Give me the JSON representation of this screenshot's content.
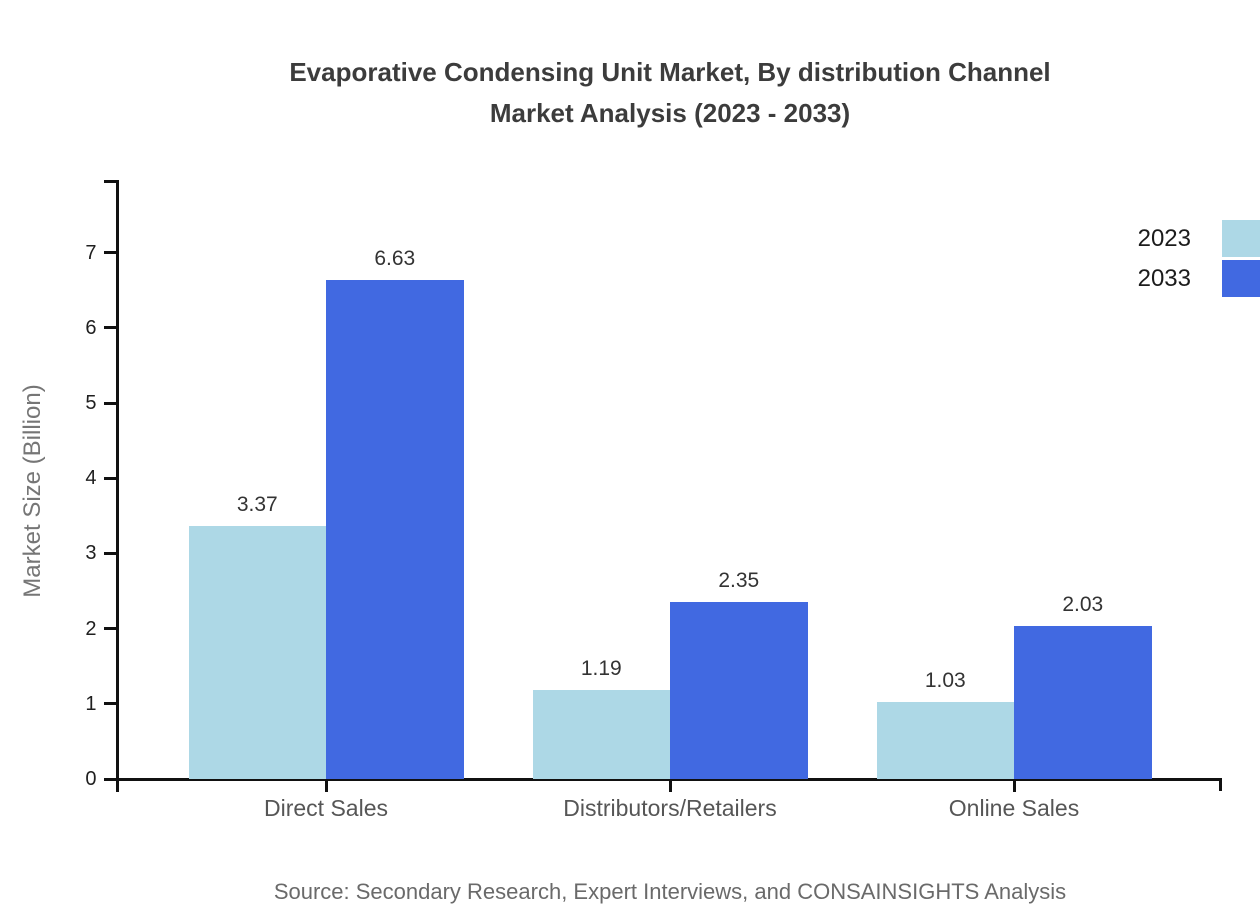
{
  "title": {
    "line1": "Evaporative Condensing Unit Market, By distribution Channel",
    "line2": "Market Analysis (2023 - 2033)"
  },
  "source": "Source: Secondary Research, Expert Interviews, and CONSAINSIGHTS Analysis",
  "chart_data": {
    "type": "bar",
    "title": "Evaporative Condensing Unit Market, By distribution Channel Market Analysis (2023 - 2033)",
    "categories": [
      "Direct Sales",
      "Distributors/Retailers",
      "Online Sales"
    ],
    "series": [
      {
        "name": "2023",
        "color": "#ADD8E6",
        "values": [
          3.37,
          1.19,
          1.03
        ]
      },
      {
        "name": "2033",
        "color": "#4169E1",
        "values": [
          6.63,
          2.35,
          2.03
        ]
      }
    ],
    "xlabel": "",
    "ylabel": "Market Size (Billion)",
    "ylim": [
      0,
      8
    ],
    "yticks": [
      0,
      1,
      2,
      3,
      4,
      5,
      6,
      7
    ],
    "grid": false,
    "legend_position": "top-right",
    "value_labels": true,
    "axis_color": "#111111"
  }
}
